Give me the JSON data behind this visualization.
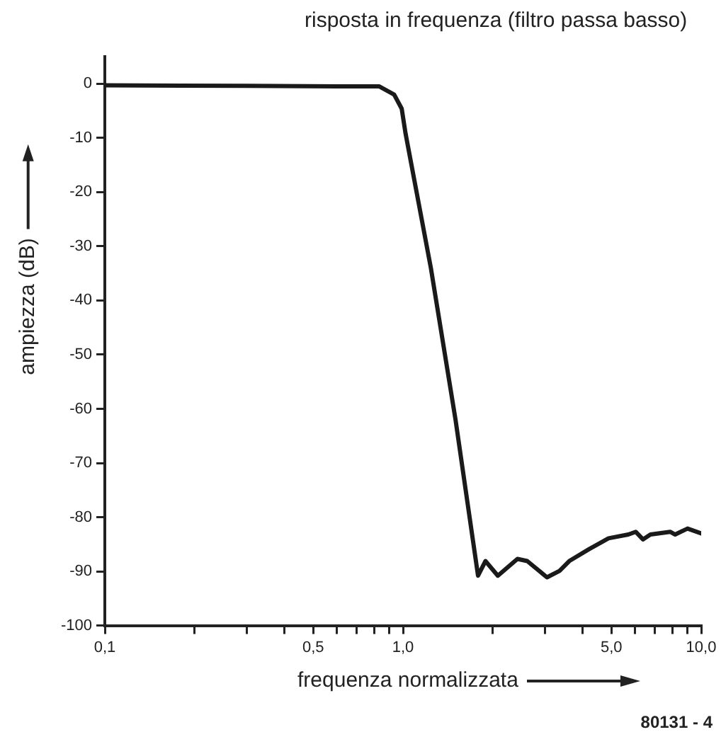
{
  "chart_data": {
    "type": "line",
    "title": "risposta in frequenza (filtro passa basso)",
    "xlabel": "frequenza normalizzata",
    "ylabel": "ampiezza (dB)",
    "annotations": [
      "80131 - 4"
    ],
    "log": "x",
    "grid": false,
    "legend": false,
    "marker": "none",
    "line_style": "solid",
    "xlim": [
      0.1,
      10
    ],
    "ylim": [
      -100,
      5
    ],
    "xticks": [
      {
        "value": 0.1,
        "label": "0,1"
      },
      {
        "value": 0.2,
        "label": null
      },
      {
        "value": 0.3,
        "label": null
      },
      {
        "value": 0.4,
        "label": null
      },
      {
        "value": 0.5,
        "label": "0,5"
      },
      {
        "value": 0.6,
        "label": null
      },
      {
        "value": 0.7,
        "label": null
      },
      {
        "value": 0.8,
        "label": null
      },
      {
        "value": 0.9,
        "label": null
      },
      {
        "value": 1,
        "label": "1,0"
      },
      {
        "value": 2,
        "label": null
      },
      {
        "value": 3,
        "label": null
      },
      {
        "value": 4,
        "label": null
      },
      {
        "value": 5,
        "label": "5,0"
      },
      {
        "value": 6,
        "label": null
      },
      {
        "value": 7,
        "label": null
      },
      {
        "value": 8,
        "label": null
      },
      {
        "value": 9,
        "label": null
      },
      {
        "value": 10,
        "label": "10,0"
      }
    ],
    "yticks": [
      0,
      -10,
      -20,
      -30,
      -40,
      -50,
      -60,
      -70,
      -80,
      -90,
      -100
    ],
    "series": [
      {
        "color": "#1a1a1a",
        "x": [
          0.1,
          0.3,
          0.6,
          0.833,
          0.934,
          0.99,
          1.02,
          1.24,
          1.5,
          1.785,
          1.89,
          2.08,
          2.42,
          2.61,
          3.04,
          3.35,
          3.61,
          4.21,
          4.89,
          5.7,
          6.03,
          6.38,
          6.76,
          7.87,
          8.18,
          9.0,
          10
        ],
        "values": [
          -0.3,
          -0.4,
          -0.5,
          -0.5,
          -2,
          -4.6,
          -9.2,
          -34,
          -62,
          -90.8,
          -88.1,
          -90.8,
          -87.7,
          -88.1,
          -91.1,
          -89.9,
          -88.1,
          -85.9,
          -83.9,
          -83.2,
          -82.7,
          -84.1,
          -83.2,
          -82.7,
          -83.2,
          -82.1,
          -83
        ]
      }
    ]
  }
}
